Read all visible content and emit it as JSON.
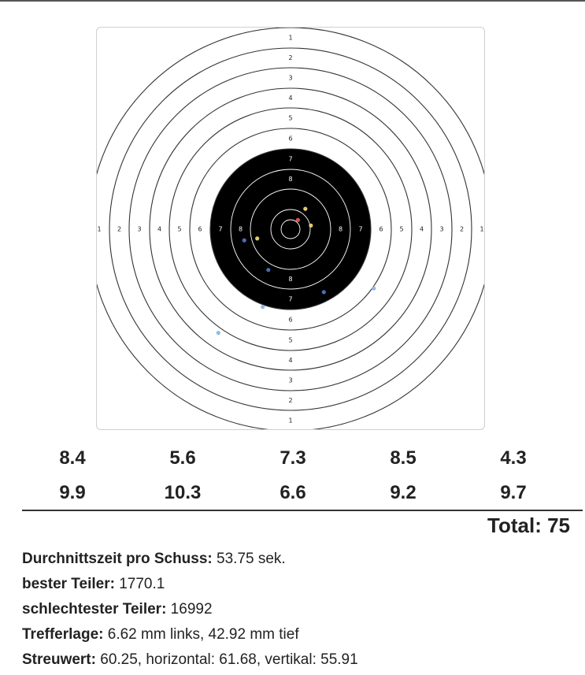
{
  "target": {
    "ring_labels_top": [
      "1",
      "2",
      "3",
      "4",
      "5",
      "6",
      "7",
      "8"
    ],
    "ring_labels_left": [
      "1",
      "2",
      "3",
      "4",
      "5",
      "6",
      "7",
      "8"
    ],
    "ring_labels_right": [
      "8",
      "7",
      "6",
      "5",
      "4",
      "3",
      "2",
      "1"
    ],
    "ring_labels_bottom": [
      "8",
      "7",
      "6",
      "5",
      "4",
      "3",
      "2",
      "1"
    ],
    "colors": {
      "black_zone": "#000000",
      "ring_line": "#333333",
      "shot_yellow": "#e2c96b",
      "shot_red": "#d9534f",
      "shot_blue": "#4a6fb0",
      "shot_light_blue": "#8fbce6"
    },
    "shots": [
      {
        "color": "yellow",
        "dx_mm": 8,
        "dy_mm": -11
      },
      {
        "color": "red",
        "dx_mm": 4,
        "dy_mm": -5
      },
      {
        "color": "yellow",
        "dx_mm": 11,
        "dy_mm": -2
      },
      {
        "color": "yellow",
        "dx_mm": -18,
        "dy_mm": 5
      },
      {
        "color": "blue",
        "dx_mm": -25,
        "dy_mm": 6
      },
      {
        "color": "blue",
        "dx_mm": -12,
        "dy_mm": 22
      },
      {
        "color": "blue",
        "dx_mm": 18,
        "dy_mm": 34
      },
      {
        "color": "light_blue",
        "dx_mm": -15,
        "dy_mm": 42
      },
      {
        "color": "light_blue",
        "dx_mm": 45,
        "dy_mm": 32
      },
      {
        "color": "light_blue",
        "dx_mm": -39,
        "dy_mm": 56
      }
    ]
  },
  "scores": {
    "row1": [
      "8.4",
      "5.6",
      "7.3",
      "8.5",
      "4.3"
    ],
    "row2": [
      "9.9",
      "10.3",
      "6.6",
      "9.2",
      "9.7"
    ],
    "total_label": "Total: 75"
  },
  "stats": {
    "avg_time_label": "Durchnittszeit pro Schuss:",
    "avg_time_value": " 53.75 sek.",
    "best_label": "bester Teiler:",
    "best_value": " 1770.1",
    "worst_label": "schlechtester Teiler:",
    "worst_value": " 16992",
    "position_label": "Trefferlage:",
    "position_value": " 6.62 mm links, 42.92 mm tief",
    "spread_label": "Streuwert:",
    "spread_value": " 60.25, horizontal: 61.68, vertikal: 55.91"
  }
}
